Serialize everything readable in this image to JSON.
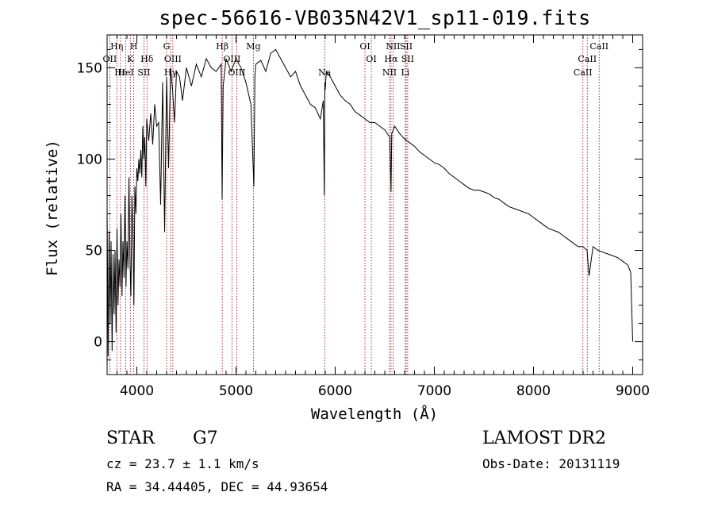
{
  "chart_data": {
    "type": "line",
    "title": "spec-56616-VB035N42V1_sp11-019.fits",
    "xlabel": "Wavelength (Å)",
    "ylabel": "Flux (relative)",
    "xlim": [
      3700,
      9100
    ],
    "ylim": [
      -18,
      168
    ],
    "xticks": [
      4000,
      5000,
      6000,
      7000,
      8000,
      9000
    ],
    "yticks": [
      0,
      50,
      100,
      150
    ],
    "tick_labels_x": [
      "4000",
      "5000",
      "6000",
      "7000",
      "8000",
      "9000"
    ],
    "tick_labels_y": [
      "0",
      "50",
      "100",
      "150"
    ],
    "grid": false,
    "line_color": "#000000",
    "marker_color": "#8b0000",
    "series": [
      {
        "x": [
          3700,
          3710,
          3720,
          3730,
          3740,
          3750,
          3760,
          3770,
          3780,
          3790,
          3800,
          3810,
          3820,
          3830,
          3840,
          3850,
          3860,
          3870,
          3880,
          3890,
          3900,
          3910,
          3920,
          3930,
          3940,
          3950,
          3960,
          3970,
          3980,
          3990,
          4000,
          4010,
          4020,
          4030,
          4040,
          4050,
          4060,
          4070,
          4080,
          4090,
          4100,
          4120,
          4140,
          4160,
          4180,
          4200,
          4220,
          4240,
          4260,
          4280,
          4300,
          4320,
          4340,
          4360,
          4380,
          4400,
          4430,
          4460,
          4500,
          4550,
          4600,
          4650,
          4700,
          4750,
          4800,
          4850,
          4860,
          4870,
          4900,
          4950,
          5000,
          5050,
          5100,
          5150,
          5180,
          5190,
          5200,
          5250,
          5300,
          5350,
          5400,
          5450,
          5500,
          5550,
          5600,
          5650,
          5700,
          5750,
          5800,
          5850,
          5880,
          5890,
          5896,
          5900,
          5910,
          5950,
          6000,
          6050,
          6100,
          6150,
          6200,
          6250,
          6300,
          6350,
          6400,
          6450,
          6500,
          6550,
          6563,
          6570,
          6600,
          6650,
          6700,
          6750,
          6800,
          6850,
          6900,
          6950,
          7000,
          7050,
          7100,
          7150,
          7200,
          7250,
          7300,
          7350,
          7400,
          7450,
          7500,
          7550,
          7600,
          7650,
          7700,
          7750,
          7800,
          7850,
          7900,
          7950,
          8000,
          8050,
          8100,
          8150,
          8200,
          8250,
          8300,
          8350,
          8400,
          8450,
          8500,
          8540,
          8560,
          8600,
          8650,
          8700,
          8750,
          8800,
          8850,
          8900,
          8950,
          8980,
          9000
        ],
        "y": [
          72,
          -8,
          60,
          10,
          55,
          -5,
          48,
          15,
          50,
          5,
          62,
          20,
          45,
          30,
          70,
          25,
          55,
          35,
          80,
          30,
          55,
          40,
          90,
          45,
          25,
          80,
          60,
          20,
          85,
          70,
          95,
          88,
          100,
          92,
          105,
          90,
          118,
          100,
          112,
          85,
          122,
          110,
          125,
          108,
          130,
          118,
          120,
          75,
          142,
          60,
          145,
          95,
          150,
          138,
          120,
          148,
          145,
          132,
          150,
          140,
          152,
          145,
          155,
          150,
          148,
          152,
          78,
          140,
          155,
          148,
          155,
          150,
          142,
          130,
          85,
          145,
          152,
          154,
          148,
          158,
          160,
          155,
          150,
          145,
          148,
          140,
          135,
          130,
          128,
          122,
          132,
          80,
          142,
          138,
          148,
          145,
          140,
          135,
          132,
          130,
          126,
          124,
          122,
          120,
          120,
          118,
          116,
          112,
          82,
          114,
          118,
          114,
          111,
          109,
          107,
          104,
          102,
          100,
          98,
          97,
          95,
          92,
          90,
          88,
          86,
          84,
          83,
          83,
          82,
          81,
          79,
          78,
          76,
          74,
          73,
          72,
          71,
          70,
          68,
          66,
          64,
          62,
          61,
          60,
          58,
          56,
          54,
          52,
          52,
          50,
          36,
          52,
          50,
          49,
          48,
          47,
          46,
          44,
          42,
          38,
          0
        ]
      }
    ],
    "lines": [
      {
        "x": 3727,
        "row": 2,
        "label": "OII"
      },
      {
        "x": 3798,
        "row": 1,
        "label": "Hη"
      },
      {
        "x": 3835,
        "row": 3,
        "label": "Hε"
      },
      {
        "x": 3889,
        "row": 3,
        "label": "HeI"
      },
      {
        "x": 3934,
        "row": 2,
        "label": "K"
      },
      {
        "x": 3969,
        "row": 1,
        "label": "H"
      },
      {
        "x": 4072,
        "row": 3,
        "label": "SII"
      },
      {
        "x": 4102,
        "row": 2,
        "label": "Hδ"
      },
      {
        "x": 4300,
        "row": 1,
        "label": "G"
      },
      {
        "x": 4340,
        "row": 3,
        "label": "Hγ"
      },
      {
        "x": 4363,
        "row": 2,
        "label": "OIII"
      },
      {
        "x": 4861,
        "row": 1,
        "label": "Hβ"
      },
      {
        "x": 4959,
        "row": 2,
        "label": "OIII"
      },
      {
        "x": 5007,
        "row": 3,
        "label": "OIII"
      },
      {
        "x": 5175,
        "row": 1,
        "label": "Mg"
      },
      {
        "x": 5894,
        "row": 3,
        "label": "Na"
      },
      {
        "x": 6300,
        "row": 1,
        "label": "OI"
      },
      {
        "x": 6364,
        "row": 2,
        "label": "OI"
      },
      {
        "x": 6548,
        "row": 3,
        "label": "NII"
      },
      {
        "x": 6563,
        "row": 2,
        "label": "Hα"
      },
      {
        "x": 6583,
        "row": 1,
        "label": "NII"
      },
      {
        "x": 6707,
        "row": 3,
        "label": "Li"
      },
      {
        "x": 6716,
        "row": 1,
        "label": "SII"
      },
      {
        "x": 6731,
        "row": 2,
        "label": "SII"
      },
      {
        "x": 8498,
        "row": 3,
        "label": "CaII"
      },
      {
        "x": 8542,
        "row": 2,
        "label": "CaII"
      },
      {
        "x": 8662,
        "row": 1,
        "label": "CaII"
      }
    ]
  },
  "info": {
    "class": "STAR",
    "subclass": "G7",
    "survey": "LAMOST DR2",
    "cz": "cz = 23.7 ± 1.1 km/s",
    "obs_date": "Obs-Date: 20131119",
    "coords": "RA =  34.44405, DEC =  44.93654"
  }
}
